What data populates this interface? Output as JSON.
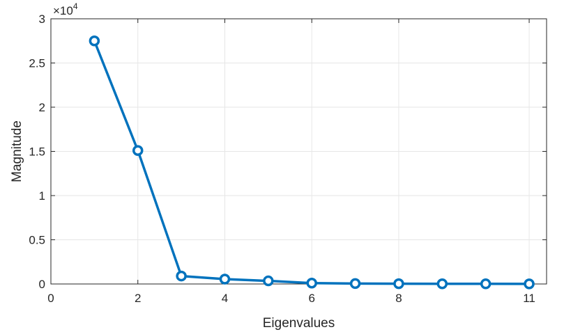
{
  "chart_data": {
    "type": "line",
    "xlabel": "Eigenvalues",
    "ylabel": "Magnitude",
    "xlim": [
      0,
      11.4
    ],
    "ylim": [
      0,
      30000
    ],
    "x_ticks": [
      0,
      2,
      4,
      6,
      8,
      11
    ],
    "x_tick_labels": [
      "0",
      "2",
      "4",
      "6",
      "8",
      "11"
    ],
    "y_ticks": [
      0,
      5000,
      10000,
      15000,
      20000,
      25000,
      30000
    ],
    "y_tick_labels": [
      "0",
      "0.5",
      "1",
      "1.5",
      "2",
      "2.5",
      "3"
    ],
    "y_exponent_base": "×10",
    "y_exponent_power": "4",
    "grid": true,
    "marker": "circle",
    "line_color": "#0072BD",
    "series": [
      {
        "x": [
          1,
          2,
          3,
          4,
          5,
          6,
          7,
          8,
          9,
          10,
          11
        ],
        "values": [
          27500,
          15100,
          900,
          550,
          350,
          100,
          50,
          30,
          20,
          15,
          10
        ]
      }
    ]
  }
}
